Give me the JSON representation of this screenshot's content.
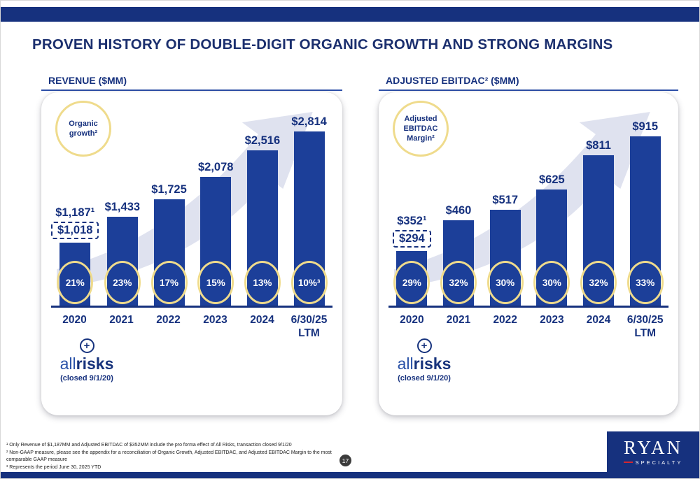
{
  "slide": {
    "title": "PROVEN HISTORY OF DOUBLE-DIGIT ORGANIC GROWTH AND STRONG MARGINS",
    "page_number": "17",
    "footnotes": [
      "¹ Only Revenue of $1,187MM and Adjusted EBITDAC of $352MM include the pro forma effect of All Risks, transaction closed 9/1/20",
      "² Non-GAAP measure, please see the appendix for a reconciliation of Organic Growth, Adjusted EBITDAC, and Adjusted EBITDAC Margin to the most comparable GAAP measure",
      "³ Represents the period June 30, 2025 YTD"
    ],
    "logo": {
      "line1": "RYAN",
      "line2": "SPECIALTY"
    }
  },
  "icons": {
    "plus": "+"
  },
  "colors": {
    "navy_text": "#16317E",
    "bar_fill": "#1C3F99",
    "oval_yellow": "#EFDB8C",
    "arrow_gray": "#C9CFE5",
    "logo_red": "#D22630"
  },
  "chart_data": [
    {
      "type": "bar",
      "title": "REVENUE ($MM)",
      "unit": "$MM",
      "badge": "Organic growth²",
      "ylim": [
        0,
        3000
      ],
      "categories": [
        {
          "label": "2020",
          "sublabel": ""
        },
        {
          "label": "2021",
          "sublabel": ""
        },
        {
          "label": "2022",
          "sublabel": ""
        },
        {
          "label": "2023",
          "sublabel": ""
        },
        {
          "label": "2024",
          "sublabel": ""
        },
        {
          "label": "6/30/25",
          "sublabel": "LTM"
        }
      ],
      "values": [
        1018,
        1433,
        1725,
        2078,
        2516,
        2814
      ],
      "bar_labels": [
        "$1,018",
        "$1,433",
        "$1,725",
        "$2,078",
        "$2,516",
        "$2,814"
      ],
      "pro_forma": {
        "value": 1187,
        "label": "$1,187¹"
      },
      "oval_series": {
        "name": "Organic growth %",
        "values": [
          21,
          23,
          17,
          15,
          13,
          10
        ],
        "labels": [
          "21%",
          "23%",
          "17%",
          "15%",
          "13%",
          "10%³"
        ]
      },
      "acquisition": {
        "logo_part1": "all",
        "logo_part2": "risks",
        "note": "(closed 9/1/20)"
      }
    },
    {
      "type": "bar",
      "title": "ADJUSTED EBITDAC² ($MM)",
      "unit": "$MM",
      "badge": "Adjusted EBITDAC Margin²",
      "ylim": [
        0,
        1000
      ],
      "categories": [
        {
          "label": "2020",
          "sublabel": ""
        },
        {
          "label": "2021",
          "sublabel": ""
        },
        {
          "label": "2022",
          "sublabel": ""
        },
        {
          "label": "2023",
          "sublabel": ""
        },
        {
          "label": "2024",
          "sublabel": ""
        },
        {
          "label": "6/30/25",
          "sublabel": "LTM"
        }
      ],
      "values": [
        294,
        460,
        517,
        625,
        811,
        915
      ],
      "bar_labels": [
        "$294",
        "$460",
        "$517",
        "$625",
        "$811",
        "$915"
      ],
      "pro_forma": {
        "value": 352,
        "label": "$352¹"
      },
      "oval_series": {
        "name": "Adjusted EBITDAC Margin %",
        "values": [
          29,
          32,
          30,
          30,
          32,
          33
        ],
        "labels": [
          "29%",
          "32%",
          "30%",
          "30%",
          "32%",
          "33%"
        ]
      },
      "acquisition": {
        "logo_part1": "all",
        "logo_part2": "risks",
        "note": "(closed 9/1/20)"
      }
    }
  ]
}
